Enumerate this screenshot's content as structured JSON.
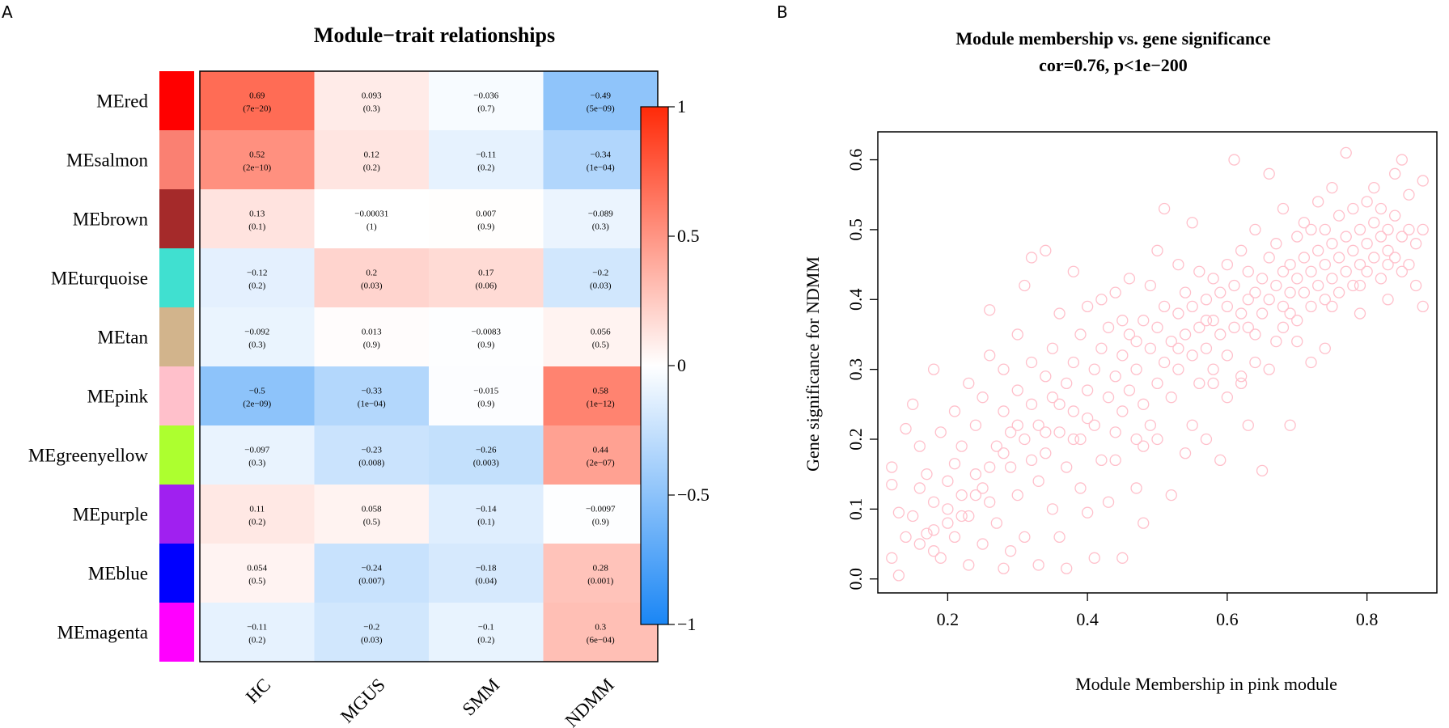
{
  "panels": {
    "a": "A",
    "b": "B"
  },
  "chart_data": [
    {
      "type": "heatmap",
      "title": "Module−trait relationships",
      "rows": [
        "MEred",
        "MEsalmon",
        "MEbrown",
        "MEturquoise",
        "MEtan",
        "MEpink",
        "MEgreenyellow",
        "MEpurple",
        "MEblue",
        "MEmagenta"
      ],
      "row_colors": [
        "#ff0000",
        "#fa8072",
        "#a52a2a",
        "#40e0d0",
        "#d2b48c",
        "#ffc0cb",
        "#adff2f",
        "#a020f0",
        "#0000ff",
        "#ff00ff"
      ],
      "columns": [
        "HC",
        "MGUS",
        "SMM",
        "NDMM"
      ],
      "values": [
        [
          0.69,
          0.093,
          -0.036,
          -0.49
        ],
        [
          0.52,
          0.12,
          -0.11,
          -0.34
        ],
        [
          0.13,
          -0.00031,
          0.007,
          -0.089
        ],
        [
          -0.12,
          0.2,
          0.17,
          -0.2
        ],
        [
          -0.092,
          0.013,
          -0.0083,
          0.056
        ],
        [
          -0.5,
          -0.33,
          -0.015,
          0.58
        ],
        [
          -0.097,
          -0.23,
          -0.26,
          0.44
        ],
        [
          0.11,
          0.058,
          -0.14,
          -0.0097
        ],
        [
          0.054,
          -0.24,
          -0.18,
          0.28
        ],
        [
          -0.11,
          -0.2,
          -0.1,
          0.3
        ]
      ],
      "value_labels": [
        [
          "0.69",
          "0.093",
          "−0.036",
          "−0.49"
        ],
        [
          "0.52",
          "0.12",
          "−0.11",
          "−0.34"
        ],
        [
          "0.13",
          "−0.00031",
          "0.007",
          "−0.089"
        ],
        [
          "−0.12",
          "0.2",
          "0.17",
          "−0.2"
        ],
        [
          "−0.092",
          "0.013",
          "−0.0083",
          "0.056"
        ],
        [
          "−0.5",
          "−0.33",
          "−0.015",
          "0.58"
        ],
        [
          "−0.097",
          "−0.23",
          "−0.26",
          "0.44"
        ],
        [
          "0.11",
          "0.058",
          "−0.14",
          "−0.0097"
        ],
        [
          "0.054",
          "−0.24",
          "−0.18",
          "0.28"
        ],
        [
          "−0.11",
          "−0.2",
          "−0.1",
          "0.3"
        ]
      ],
      "pvalue_labels": [
        [
          "(7e−20)",
          "(0.3)",
          "(0.7)",
          "(5e−09)"
        ],
        [
          "(2e−10)",
          "(0.2)",
          "(0.2)",
          "(1e−04)"
        ],
        [
          "(0.1)",
          "(1)",
          "(0.9)",
          "(0.3)"
        ],
        [
          "(0.2)",
          "(0.03)",
          "(0.06)",
          "(0.03)"
        ],
        [
          "(0.3)",
          "(0.9)",
          "(0.9)",
          "(0.5)"
        ],
        [
          "(2e−09)",
          "(1e−04)",
          "(0.9)",
          "(1e−12)"
        ],
        [
          "(0.3)",
          "(0.008)",
          "(0.003)",
          "(2e−07)"
        ],
        [
          "(0.2)",
          "(0.5)",
          "(0.1)",
          "(0.9)"
        ],
        [
          "(0.5)",
          "(0.007)",
          "(0.04)",
          "(0.001)"
        ],
        [
          "(0.2)",
          "(0.03)",
          "(0.2)",
          "(6e−04)"
        ]
      ],
      "color_scale": {
        "min": -1,
        "max": 1,
        "low": "#1a86f5",
        "mid": "#ffffff",
        "high": "#ff2a08"
      },
      "legend_ticks": [
        {
          "v": 1,
          "label": "1"
        },
        {
          "v": 0.5,
          "label": "0.5"
        },
        {
          "v": 0,
          "label": "0"
        },
        {
          "v": -0.5,
          "label": "−0.5"
        },
        {
          "v": -1,
          "label": "−1"
        }
      ]
    },
    {
      "type": "scatter",
      "title": "Module membership vs. gene significance",
      "subtitle": "cor=0.76, p<1e−200",
      "xlabel": "Module Membership in pink module",
      "ylabel": "Gene significance for NDMM",
      "xlim": [
        0.1,
        0.9
      ],
      "ylim": [
        -0.02,
        0.64
      ],
      "xticks": [
        {
          "v": 0.2,
          "label": "0.2"
        },
        {
          "v": 0.4,
          "label": "0.4"
        },
        {
          "v": 0.6,
          "label": "0.6"
        },
        {
          "v": 0.8,
          "label": "0.8"
        }
      ],
      "yticks": [
        {
          "v": 0.0,
          "label": "0.0"
        },
        {
          "v": 0.1,
          "label": "0.1"
        },
        {
          "v": 0.2,
          "label": "0.2"
        },
        {
          "v": 0.3,
          "label": "0.3"
        },
        {
          "v": 0.4,
          "label": "0.4"
        },
        {
          "v": 0.5,
          "label": "0.5"
        },
        {
          "v": 0.6,
          "label": "0.6"
        }
      ],
      "point_color": "#ffc0cb",
      "points": [
        [
          0.13,
          0.005
        ],
        [
          0.12,
          0.03
        ],
        [
          0.12,
          0.16
        ],
        [
          0.12,
          0.135
        ],
        [
          0.13,
          0.095
        ],
        [
          0.14,
          0.215
        ],
        [
          0.15,
          0.25
        ],
        [
          0.14,
          0.06
        ],
        [
          0.15,
          0.09
        ],
        [
          0.16,
          0.13
        ],
        [
          0.16,
          0.19
        ],
        [
          0.17,
          0.065
        ],
        [
          0.17,
          0.15
        ],
        [
          0.18,
          0.04
        ],
        [
          0.18,
          0.11
        ],
        [
          0.18,
          0.3
        ],
        [
          0.19,
          0.03
        ],
        [
          0.19,
          0.21
        ],
        [
          0.2,
          0.14
        ],
        [
          0.2,
          0.08
        ],
        [
          0.21,
          0.06
        ],
        [
          0.21,
          0.165
        ],
        [
          0.21,
          0.24
        ],
        [
          0.22,
          0.12
        ],
        [
          0.22,
          0.19
        ],
        [
          0.23,
          0.09
        ],
        [
          0.23,
          0.02
        ],
        [
          0.23,
          0.28
        ],
        [
          0.24,
          0.15
        ],
        [
          0.24,
          0.22
        ],
        [
          0.25,
          0.05
        ],
        [
          0.25,
          0.13
        ],
        [
          0.25,
          0.26
        ],
        [
          0.26,
          0.11
        ],
        [
          0.26,
          0.32
        ],
        [
          0.26,
          0.385
        ],
        [
          0.27,
          0.19
        ],
        [
          0.27,
          0.08
        ],
        [
          0.28,
          0.015
        ],
        [
          0.28,
          0.24
        ],
        [
          0.28,
          0.3
        ],
        [
          0.29,
          0.16
        ],
        [
          0.29,
          0.21
        ],
        [
          0.29,
          0.04
        ],
        [
          0.3,
          0.27
        ],
        [
          0.3,
          0.12
        ],
        [
          0.3,
          0.35
        ],
        [
          0.31,
          0.2
        ],
        [
          0.31,
          0.06
        ],
        [
          0.31,
          0.42
        ],
        [
          0.32,
          0.25
        ],
        [
          0.32,
          0.31
        ],
        [
          0.32,
          0.46
        ],
        [
          0.33,
          0.14
        ],
        [
          0.33,
          0.22
        ],
        [
          0.33,
          0.02
        ],
        [
          0.34,
          0.29
        ],
        [
          0.34,
          0.47
        ],
        [
          0.34,
          0.18
        ],
        [
          0.35,
          0.26
        ],
        [
          0.35,
          0.33
        ],
        [
          0.35,
          0.1
        ],
        [
          0.36,
          0.21
        ],
        [
          0.36,
          0.38
        ],
        [
          0.36,
          0.06
        ],
        [
          0.37,
          0.28
        ],
        [
          0.37,
          0.16
        ],
        [
          0.37,
          0.015
        ],
        [
          0.38,
          0.31
        ],
        [
          0.38,
          0.24
        ],
        [
          0.38,
          0.44
        ],
        [
          0.39,
          0.2
        ],
        [
          0.39,
          0.35
        ],
        [
          0.39,
          0.13
        ],
        [
          0.4,
          0.27
        ],
        [
          0.4,
          0.39
        ],
        [
          0.4,
          0.095
        ],
        [
          0.41,
          0.3
        ],
        [
          0.41,
          0.22
        ],
        [
          0.41,
          0.03
        ],
        [
          0.42,
          0.33
        ],
        [
          0.42,
          0.17
        ],
        [
          0.42,
          0.4
        ],
        [
          0.43,
          0.26
        ],
        [
          0.43,
          0.36
        ],
        [
          0.43,
          0.11
        ],
        [
          0.44,
          0.29
        ],
        [
          0.44,
          0.21
        ],
        [
          0.44,
          0.41
        ],
        [
          0.45,
          0.32
        ],
        [
          0.45,
          0.24
        ],
        [
          0.45,
          0.03
        ],
        [
          0.46,
          0.35
        ],
        [
          0.46,
          0.27
        ],
        [
          0.46,
          0.43
        ],
        [
          0.47,
          0.3
        ],
        [
          0.47,
          0.2
        ],
        [
          0.47,
          0.13
        ],
        [
          0.48,
          0.37
        ],
        [
          0.48,
          0.25
        ],
        [
          0.48,
          0.08
        ],
        [
          0.49,
          0.33
        ],
        [
          0.49,
          0.42
        ],
        [
          0.49,
          0.22
        ],
        [
          0.5,
          0.36
        ],
        [
          0.5,
          0.28
        ],
        [
          0.5,
          0.47
        ],
        [
          0.51,
          0.31
        ],
        [
          0.51,
          0.39
        ],
        [
          0.51,
          0.53
        ],
        [
          0.52,
          0.34
        ],
        [
          0.52,
          0.26
        ],
        [
          0.52,
          0.12
        ],
        [
          0.53,
          0.38
        ],
        [
          0.53,
          0.3
        ],
        [
          0.53,
          0.45
        ],
        [
          0.54,
          0.35
        ],
        [
          0.54,
          0.41
        ],
        [
          0.54,
          0.18
        ],
        [
          0.55,
          0.32
        ],
        [
          0.55,
          0.39
        ],
        [
          0.55,
          0.51
        ],
        [
          0.56,
          0.36
        ],
        [
          0.56,
          0.28
        ],
        [
          0.56,
          0.44
        ],
        [
          0.57,
          0.4
        ],
        [
          0.57,
          0.33
        ],
        [
          0.57,
          0.2
        ],
        [
          0.58,
          0.37
        ],
        [
          0.58,
          0.43
        ],
        [
          0.58,
          0.3
        ],
        [
          0.59,
          0.41
        ],
        [
          0.59,
          0.35
        ],
        [
          0.59,
          0.17
        ],
        [
          0.6,
          0.39
        ],
        [
          0.6,
          0.45
        ],
        [
          0.6,
          0.32
        ],
        [
          0.61,
          0.42
        ],
        [
          0.61,
          0.36
        ],
        [
          0.61,
          0.6
        ],
        [
          0.62,
          0.38
        ],
        [
          0.62,
          0.47
        ],
        [
          0.62,
          0.28
        ],
        [
          0.63,
          0.44
        ],
        [
          0.63,
          0.4
        ],
        [
          0.63,
          0.22
        ],
        [
          0.64,
          0.41
        ],
        [
          0.64,
          0.5
        ],
        [
          0.64,
          0.35
        ],
        [
          0.65,
          0.43
        ],
        [
          0.65,
          0.38
        ],
        [
          0.65,
          0.155
        ],
        [
          0.66,
          0.46
        ],
        [
          0.66,
          0.4
        ],
        [
          0.66,
          0.58
        ],
        [
          0.67,
          0.42
        ],
        [
          0.67,
          0.48
        ],
        [
          0.67,
          0.34
        ],
        [
          0.68,
          0.44
        ],
        [
          0.68,
          0.39
        ],
        [
          0.68,
          0.53
        ],
        [
          0.69,
          0.45
        ],
        [
          0.69,
          0.41
        ],
        [
          0.69,
          0.22
        ],
        [
          0.7,
          0.43
        ],
        [
          0.7,
          0.49
        ],
        [
          0.7,
          0.37
        ],
        [
          0.71,
          0.46
        ],
        [
          0.71,
          0.41
        ],
        [
          0.71,
          0.51
        ],
        [
          0.72,
          0.44
        ],
        [
          0.72,
          0.5
        ],
        [
          0.72,
          0.39
        ],
        [
          0.73,
          0.47
        ],
        [
          0.73,
          0.42
        ],
        [
          0.73,
          0.54
        ],
        [
          0.74,
          0.45
        ],
        [
          0.74,
          0.5
        ],
        [
          0.74,
          0.4
        ],
        [
          0.75,
          0.48
        ],
        [
          0.75,
          0.43
        ],
        [
          0.75,
          0.56
        ],
        [
          0.76,
          0.46
        ],
        [
          0.76,
          0.41
        ],
        [
          0.76,
          0.52
        ],
        [
          0.77,
          0.49
        ],
        [
          0.77,
          0.44
        ],
        [
          0.77,
          0.61
        ],
        [
          0.78,
          0.47
        ],
        [
          0.78,
          0.42
        ],
        [
          0.78,
          0.53
        ],
        [
          0.79,
          0.5
        ],
        [
          0.79,
          0.45
        ],
        [
          0.79,
          0.38
        ],
        [
          0.8,
          0.48
        ],
        [
          0.8,
          0.54
        ],
        [
          0.8,
          0.44
        ],
        [
          0.81,
          0.46
        ],
        [
          0.81,
          0.51
        ],
        [
          0.81,
          0.56
        ],
        [
          0.82,
          0.49
        ],
        [
          0.82,
          0.43
        ],
        [
          0.82,
          0.53
        ],
        [
          0.83,
          0.47
        ],
        [
          0.83,
          0.5
        ],
        [
          0.83,
          0.4
        ],
        [
          0.84,
          0.52
        ],
        [
          0.84,
          0.46
        ],
        [
          0.84,
          0.58
        ],
        [
          0.85,
          0.49
        ],
        [
          0.85,
          0.44
        ],
        [
          0.85,
          0.6
        ],
        [
          0.86,
          0.5
        ],
        [
          0.86,
          0.45
        ],
        [
          0.86,
          0.55
        ],
        [
          0.87,
          0.48
        ],
        [
          0.87,
          0.42
        ],
        [
          0.88,
          0.5
        ],
        [
          0.88,
          0.57
        ],
        [
          0.88,
          0.39
        ],
        [
          0.62,
          0.29
        ],
        [
          0.58,
          0.28
        ],
        [
          0.55,
          0.22
        ],
        [
          0.66,
          0.3
        ],
        [
          0.7,
          0.34
        ],
        [
          0.72,
          0.31
        ],
        [
          0.74,
          0.33
        ],
        [
          0.68,
          0.36
        ],
        [
          0.64,
          0.31
        ],
        [
          0.6,
          0.26
        ],
        [
          0.5,
          0.2
        ],
        [
          0.48,
          0.19
        ],
        [
          0.44,
          0.17
        ],
        [
          0.4,
          0.23
        ],
        [
          0.38,
          0.2
        ],
        [
          0.36,
          0.25
        ],
        [
          0.34,
          0.21
        ],
        [
          0.32,
          0.17
        ],
        [
          0.3,
          0.22
        ],
        [
          0.28,
          0.18
        ],
        [
          0.26,
          0.16
        ],
        [
          0.24,
          0.12
        ],
        [
          0.22,
          0.09
        ],
        [
          0.2,
          0.1
        ],
        [
          0.18,
          0.07
        ],
        [
          0.16,
          0.05
        ],
        [
          0.45,
          0.37
        ],
        [
          0.47,
          0.34
        ],
        [
          0.53,
          0.33
        ],
        [
          0.57,
          0.37
        ],
        [
          0.63,
          0.36
        ],
        [
          0.69,
          0.38
        ],
        [
          0.75,
          0.39
        ],
        [
          0.79,
          0.42
        ],
        [
          0.83,
          0.45
        ]
      ]
    }
  ]
}
